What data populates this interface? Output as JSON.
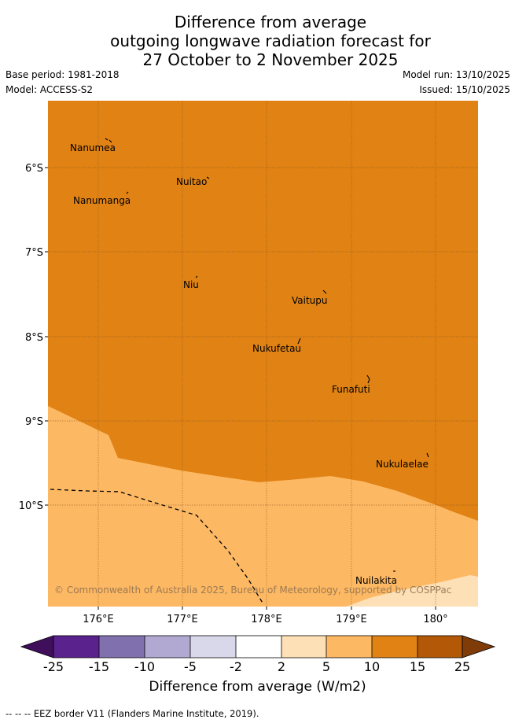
{
  "header": {
    "title_line1": "Difference from average",
    "title_line2": "outgoing longwave radiation forecast for",
    "title_line3": "27 October to 2 November 2025",
    "base_period": "Base period: 1981-2018",
    "model": "Model: ACCESS-S2",
    "model_run": "Model run: 13/10/2025",
    "issued": "Issued: 15/10/2025"
  },
  "map": {
    "region": "Tuvalu",
    "lat_labels": [
      "6°S",
      "7°S",
      "8°S",
      "9°S",
      "10°S"
    ],
    "lon_labels": [
      "176°E",
      "177°E",
      "178°E",
      "179°E",
      "180°"
    ],
    "islands": [
      {
        "name": "Nanumea"
      },
      {
        "name": "Nuitao"
      },
      {
        "name": "Nanumanga"
      },
      {
        "name": "Niu"
      },
      {
        "name": "Vaitupu"
      },
      {
        "name": "Nukufetau"
      },
      {
        "name": "Funafuti"
      },
      {
        "name": "Nukulaelae"
      },
      {
        "name": "Nuilakita"
      }
    ],
    "copyright": "© Commonwealth of Australia 2025, Bureau of Meteorology, supported by COSPPac"
  },
  "colorbar": {
    "tick_labels": [
      "-25",
      "-15",
      "-10",
      "-5",
      "-2",
      "2",
      "5",
      "10",
      "15",
      "25"
    ],
    "colors": [
      "#3f0f5c",
      "#59228c",
      "#8070ad",
      "#b1a9d1",
      "#d8d8ea",
      "#ffffff",
      "#fee0b6",
      "#fdb863",
      "#e08214",
      "#b35806",
      "#7f3b08"
    ],
    "title": "Difference from average (W/m2)"
  },
  "footer": {
    "legend_line": "--  --  -- EEZ border V11 (Flanders Marine Institute, 2019)."
  }
}
